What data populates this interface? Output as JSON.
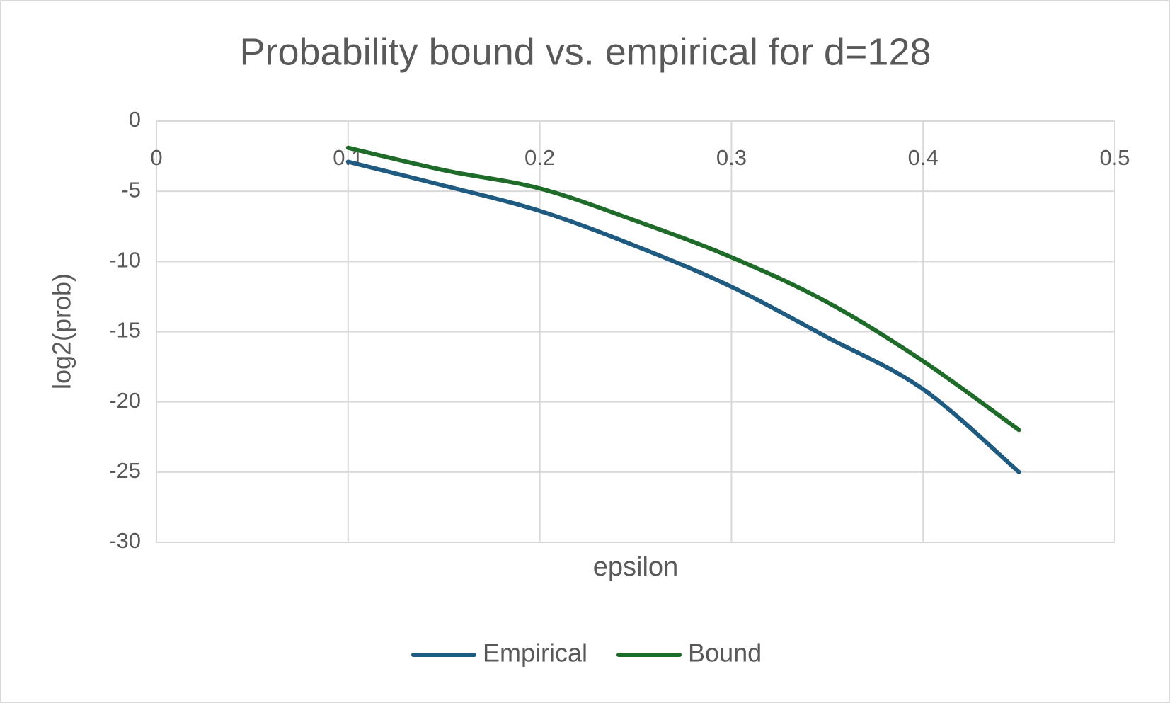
{
  "chart_data": {
    "type": "line",
    "title": "Probability bound vs. empirical for d=128",
    "x_label": "epsilon",
    "y_label": "log2(prob)",
    "x": [
      0.1,
      0.15,
      0.2,
      0.25,
      0.3,
      0.35,
      0.4,
      0.45
    ],
    "series": [
      {
        "name": "Empirical",
        "color": "#1f5a80",
        "values": [
          -2.9,
          -4.6,
          -6.4,
          -8.9,
          -11.8,
          -15.4,
          -19.1,
          -25
        ]
      },
      {
        "name": "Bound",
        "color": "#1f6b2a",
        "values": [
          -1.9,
          -3.5,
          -4.8,
          -7.1,
          -9.7,
          -12.9,
          -17.1,
          -22
        ]
      }
    ],
    "xlim": [
      0,
      0.5
    ],
    "xticks": [
      0,
      0.1,
      0.2,
      0.3,
      0.4,
      0.5
    ],
    "ylim": [
      -30,
      0
    ],
    "yticks": [
      0,
      -5,
      -10,
      -15,
      -20,
      -25,
      -30
    ],
    "grid": true,
    "smooth": true,
    "legend": "bottom"
  }
}
